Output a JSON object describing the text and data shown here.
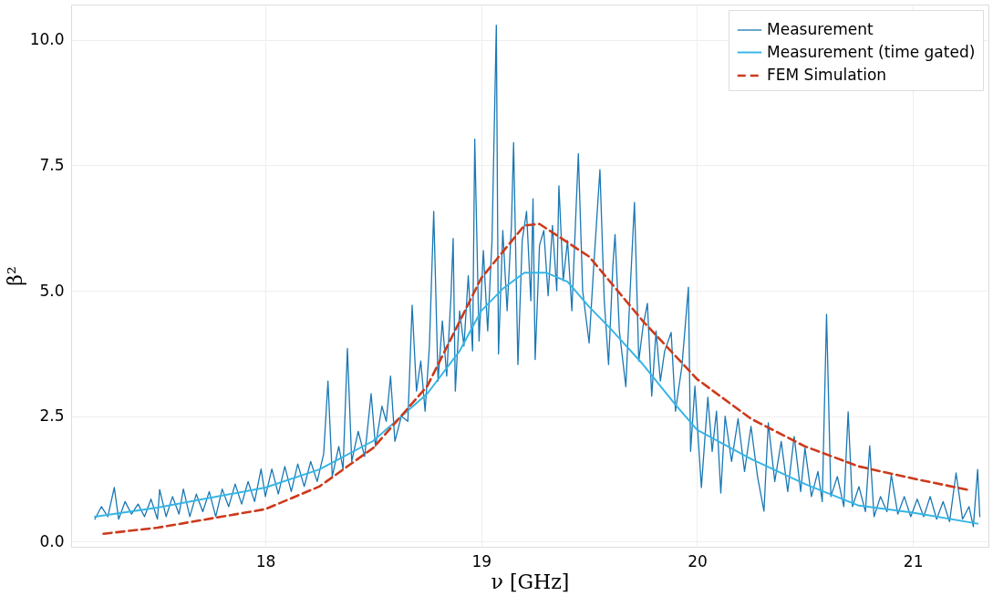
{
  "chart_data": {
    "type": "line",
    "xlabel": "ν [GHz]",
    "ylabel": "β²",
    "xlim": [
      17.1,
      21.35
    ],
    "ylim": [
      -0.1,
      10.7
    ],
    "xticks": [
      18,
      19,
      20,
      21
    ],
    "yticks": [
      {
        "value": 0,
        "label": "0.0"
      },
      {
        "value": 2.5,
        "label": "2.5"
      },
      {
        "value": 5,
        "label": "5.0"
      },
      {
        "value": 7.5,
        "label": "7.5"
      },
      {
        "value": 10,
        "label": "10.0"
      }
    ],
    "grid": true,
    "legend": "top right",
    "marker": "none",
    "series": [
      {
        "name": "Measurement",
        "color": "#1a78b4",
        "line_style": "solid",
        "x": [
          17.21,
          17.24,
          17.27,
          17.3,
          17.32,
          17.35,
          17.38,
          17.41,
          17.44,
          17.47,
          17.5,
          17.51,
          17.54,
          17.57,
          17.6,
          17.62,
          17.65,
          17.68,
          17.71,
          17.74,
          17.77,
          17.8,
          17.83,
          17.86,
          17.89,
          17.92,
          17.95,
          17.98,
          18.0,
          18.03,
          18.06,
          18.09,
          18.12,
          18.15,
          18.18,
          18.21,
          18.24,
          18.27,
          18.29,
          18.31,
          18.34,
          18.36,
          18.38,
          18.4,
          18.43,
          18.46,
          18.49,
          18.51,
          18.54,
          18.56,
          18.58,
          18.6,
          18.63,
          18.66,
          18.68,
          18.7,
          18.72,
          18.74,
          18.76,
          18.78,
          18.8,
          18.82,
          18.84,
          18.86,
          18.87,
          18.88,
          18.9,
          18.92,
          18.94,
          18.96,
          18.97,
          18.99,
          19.01,
          19.03,
          19.05,
          19.07,
          19.08,
          19.1,
          19.12,
          19.14,
          19.15,
          19.17,
          19.19,
          19.21,
          19.23,
          19.24,
          19.25,
          19.27,
          19.29,
          19.31,
          19.33,
          19.35,
          19.36,
          19.38,
          19.4,
          19.42,
          19.45,
          19.47,
          19.5,
          19.52,
          19.55,
          19.57,
          19.59,
          19.61,
          19.62,
          19.64,
          19.67,
          19.69,
          19.71,
          19.73,
          19.75,
          19.77,
          19.79,
          19.81,
          19.83,
          19.85,
          19.88,
          19.9,
          19.93,
          19.96,
          19.97,
          19.99,
          20.02,
          20.05,
          20.07,
          20.09,
          20.11,
          20.13,
          20.16,
          20.19,
          20.22,
          20.25,
          20.28,
          20.31,
          20.33,
          20.36,
          20.39,
          20.42,
          20.45,
          20.48,
          20.5,
          20.53,
          20.56,
          20.58,
          20.6,
          20.62,
          20.65,
          20.68,
          20.7,
          20.72,
          20.75,
          20.78,
          20.8,
          20.82,
          20.85,
          20.88,
          20.9,
          20.93,
          20.96,
          20.99,
          21.02,
          21.05,
          21.08,
          21.11,
          21.14,
          21.17,
          21.2,
          21.23,
          21.26,
          21.28,
          21.3,
          21.31
        ],
        "values": [
          0.45,
          0.7,
          0.5,
          1.08,
          0.45,
          0.8,
          0.55,
          0.75,
          0.5,
          0.85,
          0.45,
          1.04,
          0.5,
          0.9,
          0.55,
          1.05,
          0.5,
          0.95,
          0.6,
          1.0,
          0.5,
          1.05,
          0.7,
          1.15,
          0.75,
          1.2,
          0.8,
          1.45,
          0.9,
          1.45,
          0.95,
          1.5,
          1.0,
          1.55,
          1.1,
          1.6,
          1.2,
          1.75,
          3.2,
          1.3,
          1.9,
          1.45,
          3.85,
          1.6,
          2.2,
          1.7,
          2.95,
          1.9,
          2.7,
          2.4,
          3.3,
          2.0,
          2.5,
          2.4,
          4.71,
          3.0,
          3.6,
          2.6,
          3.9,
          6.58,
          3.2,
          4.4,
          3.3,
          4.9,
          6.04,
          3.0,
          4.6,
          3.9,
          5.3,
          3.8,
          8.02,
          4.0,
          5.8,
          4.2,
          6.0,
          10.29,
          3.74,
          6.2,
          4.6,
          6.3,
          7.95,
          3.53,
          6.0,
          6.58,
          4.8,
          6.83,
          3.63,
          5.9,
          6.2,
          4.9,
          6.3,
          5.0,
          7.09,
          5.2,
          6.0,
          4.6,
          7.73,
          5.0,
          3.96,
          5.4,
          7.41,
          4.8,
          3.53,
          5.5,
          6.12,
          4.2,
          3.09,
          5.0,
          6.76,
          3.6,
          4.3,
          4.75,
          2.9,
          4.2,
          3.2,
          3.8,
          4.17,
          2.6,
          3.5,
          5.07,
          1.8,
          3.1,
          1.08,
          2.88,
          1.8,
          2.6,
          0.97,
          2.5,
          1.6,
          2.45,
          1.4,
          2.3,
          1.3,
          0.61,
          2.37,
          1.2,
          2.0,
          1.0,
          2.1,
          1.0,
          1.87,
          0.9,
          1.4,
          0.8,
          4.53,
          0.9,
          1.3,
          0.7,
          2.59,
          0.7,
          1.1,
          0.6,
          1.91,
          0.5,
          0.9,
          0.6,
          1.33,
          0.55,
          0.9,
          0.5,
          0.85,
          0.5,
          0.9,
          0.45,
          0.8,
          0.4,
          1.37,
          0.45,
          0.7,
          0.3,
          1.44,
          0.5
        ]
      },
      {
        "name": "Measurement (time gated)",
        "color": "#35b5e5",
        "line_style": "solid",
        "x": [
          17.21,
          17.5,
          18.0,
          18.25,
          18.5,
          18.75,
          18.9,
          19.0,
          19.1,
          19.2,
          19.3,
          19.4,
          19.5,
          19.6,
          19.75,
          19.9,
          20.0,
          20.25,
          20.5,
          20.75,
          21.0,
          21.3
        ],
        "values": [
          0.5,
          0.68,
          1.08,
          1.44,
          2.01,
          2.95,
          3.8,
          4.6,
          5.04,
          5.36,
          5.36,
          5.18,
          4.68,
          4.24,
          3.53,
          2.73,
          2.23,
          1.65,
          1.15,
          0.72,
          0.58,
          0.36
        ]
      },
      {
        "name": "FEM Simulation",
        "color": "#cc3a1c",
        "line_style": "dashed",
        "x": [
          17.25,
          17.5,
          18.0,
          18.25,
          18.5,
          18.75,
          19.0,
          19.2,
          19.27,
          19.5,
          19.75,
          20.0,
          20.25,
          20.5,
          20.75,
          21.0,
          21.25
        ],
        "values": [
          0.16,
          0.28,
          0.65,
          1.1,
          1.87,
          3.1,
          5.25,
          6.3,
          6.33,
          5.68,
          4.39,
          3.24,
          2.45,
          1.9,
          1.5,
          1.26,
          1.04
        ]
      }
    ]
  }
}
